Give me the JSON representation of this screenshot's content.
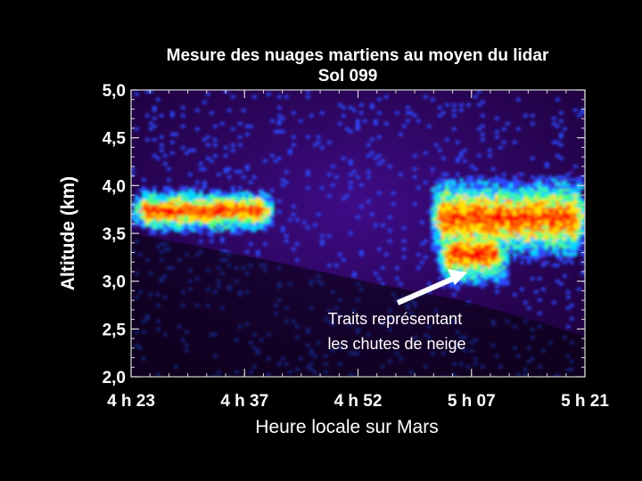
{
  "chart_data": {
    "type": "heatmap",
    "title": "Mesure des nuages martiens au moyen du lidar",
    "subtitle": "Sol 099",
    "xlabel": "Heure locale sur Mars",
    "ylabel": "Altitude (km)",
    "x_tick_labels": [
      "4 h 23",
      "4 h 37",
      "4 h 52",
      "5 h 07",
      "5 h 21"
    ],
    "y_tick_labels": [
      "2,0",
      "2,5",
      "3,0",
      "3,5",
      "4,0",
      "4,5",
      "5,0"
    ],
    "y_ticks": [
      2.0,
      2.5,
      3.0,
      3.5,
      4.0,
      4.5,
      5.0
    ],
    "ylim": [
      2.0,
      5.0
    ],
    "x_range_minutes": [
      263,
      321
    ],
    "colormap": [
      "#1a0026",
      "#4a0ea0",
      "#2a4cff",
      "#00d6ff",
      "#4cff7a",
      "#ffe100",
      "#ff7a00",
      "#ff0000"
    ],
    "background_color": "#000000",
    "annotation": {
      "lines": [
        "Traits représentant",
        "les chutes de neige"
      ],
      "arrow_color": "#ffffff"
    },
    "clouds": [
      {
        "label": "cloud-band-early",
        "t_start": 263,
        "t_end": 281,
        "alt_bottom": 3.55,
        "alt_top": 3.95
      },
      {
        "label": "cloud-band-late",
        "t_start": 301,
        "t_end": 321,
        "alt_bottom": 3.3,
        "alt_top": 4.05
      },
      {
        "label": "snow-fall-streaks",
        "t_start": 302,
        "t_end": 311,
        "alt_bottom": 3.0,
        "alt_top": 3.6
      }
    ]
  }
}
